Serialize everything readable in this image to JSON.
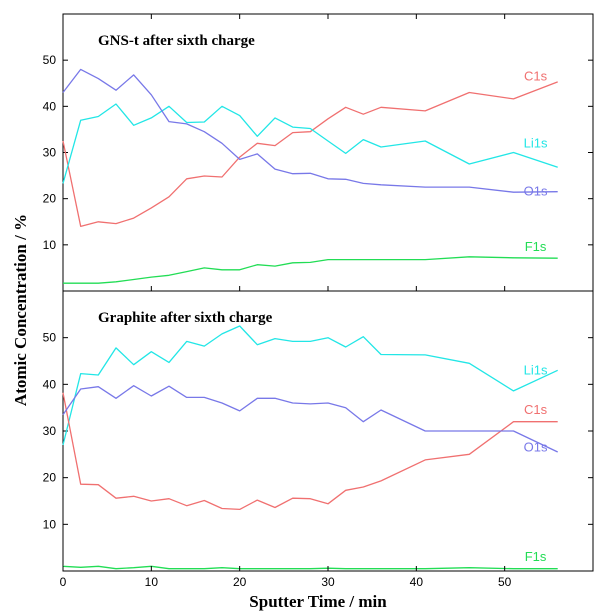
{
  "chart_data": {
    "type": "line",
    "ylabel": "Atomic Concentration / %",
    "xlabel": "Sputter Time / min",
    "xlim": [
      0,
      60
    ],
    "x_ticks": [
      "0",
      "10",
      "20",
      "30",
      "40",
      "50"
    ],
    "grid": false,
    "colors": {
      "C1s": "#f07070",
      "Li1s": "#22e6e6",
      "O1s": "#7878e8",
      "F1s": "#22dd55"
    },
    "panels": [
      {
        "title": "GNS-t after sixth charge",
        "ylim": [
          0,
          60
        ],
        "y_ticks": [
          "10",
          "20",
          "30",
          "40",
          "50"
        ],
        "series": [
          {
            "name": "C1s",
            "label_value": 46.5,
            "x": [
              0,
              2,
              4,
              6,
              8,
              10,
              12,
              14,
              16,
              18,
              20,
              22,
              24,
              26,
              28,
              30,
              32,
              34,
              36,
              41,
              46,
              51,
              56
            ],
            "values": [
              32.5,
              14,
              15,
              14.6,
              15.8,
              18,
              20.4,
              24.3,
              24.9,
              24.7,
              29,
              32,
              31.5,
              34.3,
              34.5,
              37.3,
              39.8,
              38.3,
              39.8,
              39,
              43,
              41.6,
              45.3
            ]
          },
          {
            "name": "Li1s",
            "label_value": 32,
            "x": [
              0,
              2,
              4,
              6,
              8,
              10,
              12,
              14,
              16,
              18,
              20,
              22,
              24,
              26,
              28,
              30,
              32,
              34,
              36,
              41,
              46,
              51,
              56
            ],
            "values": [
              23.3,
              37,
              37.8,
              40.5,
              35.9,
              37.5,
              40,
              36.5,
              36.6,
              40,
              38,
              33.5,
              37.5,
              35.5,
              35.2,
              32.5,
              29.8,
              32.8,
              31.2,
              32.5,
              27.5,
              30,
              26.8
            ]
          },
          {
            "name": "O1s",
            "label_value": 21.5,
            "x": [
              0,
              2,
              4,
              6,
              8,
              10,
              12,
              14,
              16,
              18,
              20,
              22,
              24,
              26,
              28,
              30,
              32,
              34,
              36,
              41,
              46,
              51,
              56
            ],
            "values": [
              43,
              48,
              46,
              43.5,
              46.8,
              42.5,
              36.7,
              36.2,
              34.5,
              32,
              28.5,
              29.7,
              26.4,
              25.4,
              25.5,
              24.3,
              24.2,
              23.3,
              23,
              22.5,
              22.5,
              21.4,
              21.5
            ]
          },
          {
            "name": "F1s",
            "label_value": 9.5,
            "x": [
              0,
              2,
              4,
              6,
              8,
              10,
              12,
              14,
              16,
              18,
              20,
              22,
              24,
              26,
              28,
              30,
              32,
              34,
              36,
              41,
              46,
              51,
              56
            ],
            "values": [
              1.7,
              1.7,
              1.7,
              2,
              2.5,
              3,
              3.4,
              4.2,
              5,
              4.6,
              4.6,
              5.7,
              5.4,
              6.1,
              6.2,
              6.8,
              6.8,
              6.8,
              6.8,
              6.8,
              7.4,
              7.2,
              7.1
            ]
          }
        ]
      },
      {
        "title": "Graphite after sixth charge",
        "ylim": [
          0,
          60
        ],
        "y_ticks": [
          "10",
          "20",
          "30",
          "40",
          "50"
        ],
        "series": [
          {
            "name": "Li1s",
            "label_value": 43,
            "x": [
              0,
              2,
              4,
              6,
              8,
              10,
              12,
              14,
              16,
              18,
              20,
              22,
              24,
              26,
              28,
              30,
              32,
              34,
              36,
              41,
              46,
              51,
              56
            ],
            "values": [
              27,
              42.3,
              42,
              47.8,
              44.2,
              47,
              44.7,
              49.2,
              48.2,
              50.8,
              52.5,
              48.5,
              49.8,
              49.2,
              49.2,
              50,
              48,
              50.2,
              46.4,
              46.3,
              44.5,
              38.6,
              43
            ]
          },
          {
            "name": "C1s",
            "label_value": 34.5,
            "x": [
              0,
              2,
              4,
              6,
              8,
              10,
              12,
              14,
              16,
              18,
              20,
              22,
              24,
              26,
              28,
              30,
              32,
              34,
              36,
              41,
              46,
              51,
              56
            ],
            "values": [
              38.2,
              18.6,
              18.5,
              15.6,
              16,
              15,
              15.5,
              14,
              15.1,
              13.4,
              13.2,
              15.2,
              13.6,
              15.6,
              15.5,
              14.4,
              17.3,
              18,
              19.3,
              23.8,
              25,
              32,
              32
            ]
          },
          {
            "name": "O1s",
            "label_value": 26.5,
            "x": [
              0,
              2,
              4,
              6,
              8,
              10,
              12,
              14,
              16,
              18,
              20,
              22,
              24,
              26,
              28,
              30,
              32,
              34,
              36,
              41,
              46,
              51,
              56
            ],
            "values": [
              33.5,
              39,
              39.5,
              37,
              39.7,
              37.5,
              39.6,
              37.2,
              37.2,
              36,
              34.3,
              37,
              37,
              36,
              35.8,
              36,
              35,
              32,
              34.5,
              30,
              30,
              30,
              25.5
            ]
          },
          {
            "name": "F1s",
            "label_value": 3,
            "x": [
              0,
              2,
              4,
              6,
              8,
              10,
              12,
              14,
              16,
              18,
              20,
              22,
              24,
              26,
              28,
              30,
              32,
              34,
              36,
              41,
              46,
              51,
              56
            ],
            "values": [
              1,
              0.8,
              1,
              0.5,
              0.7,
              1,
              0.5,
              0.5,
              0.5,
              0.7,
              0.5,
              0.5,
              0.5,
              0.5,
              0.5,
              0.6,
              0.5,
              0.5,
              0.5,
              0.5,
              0.7,
              0.5,
              0.5
            ]
          }
        ]
      }
    ]
  }
}
